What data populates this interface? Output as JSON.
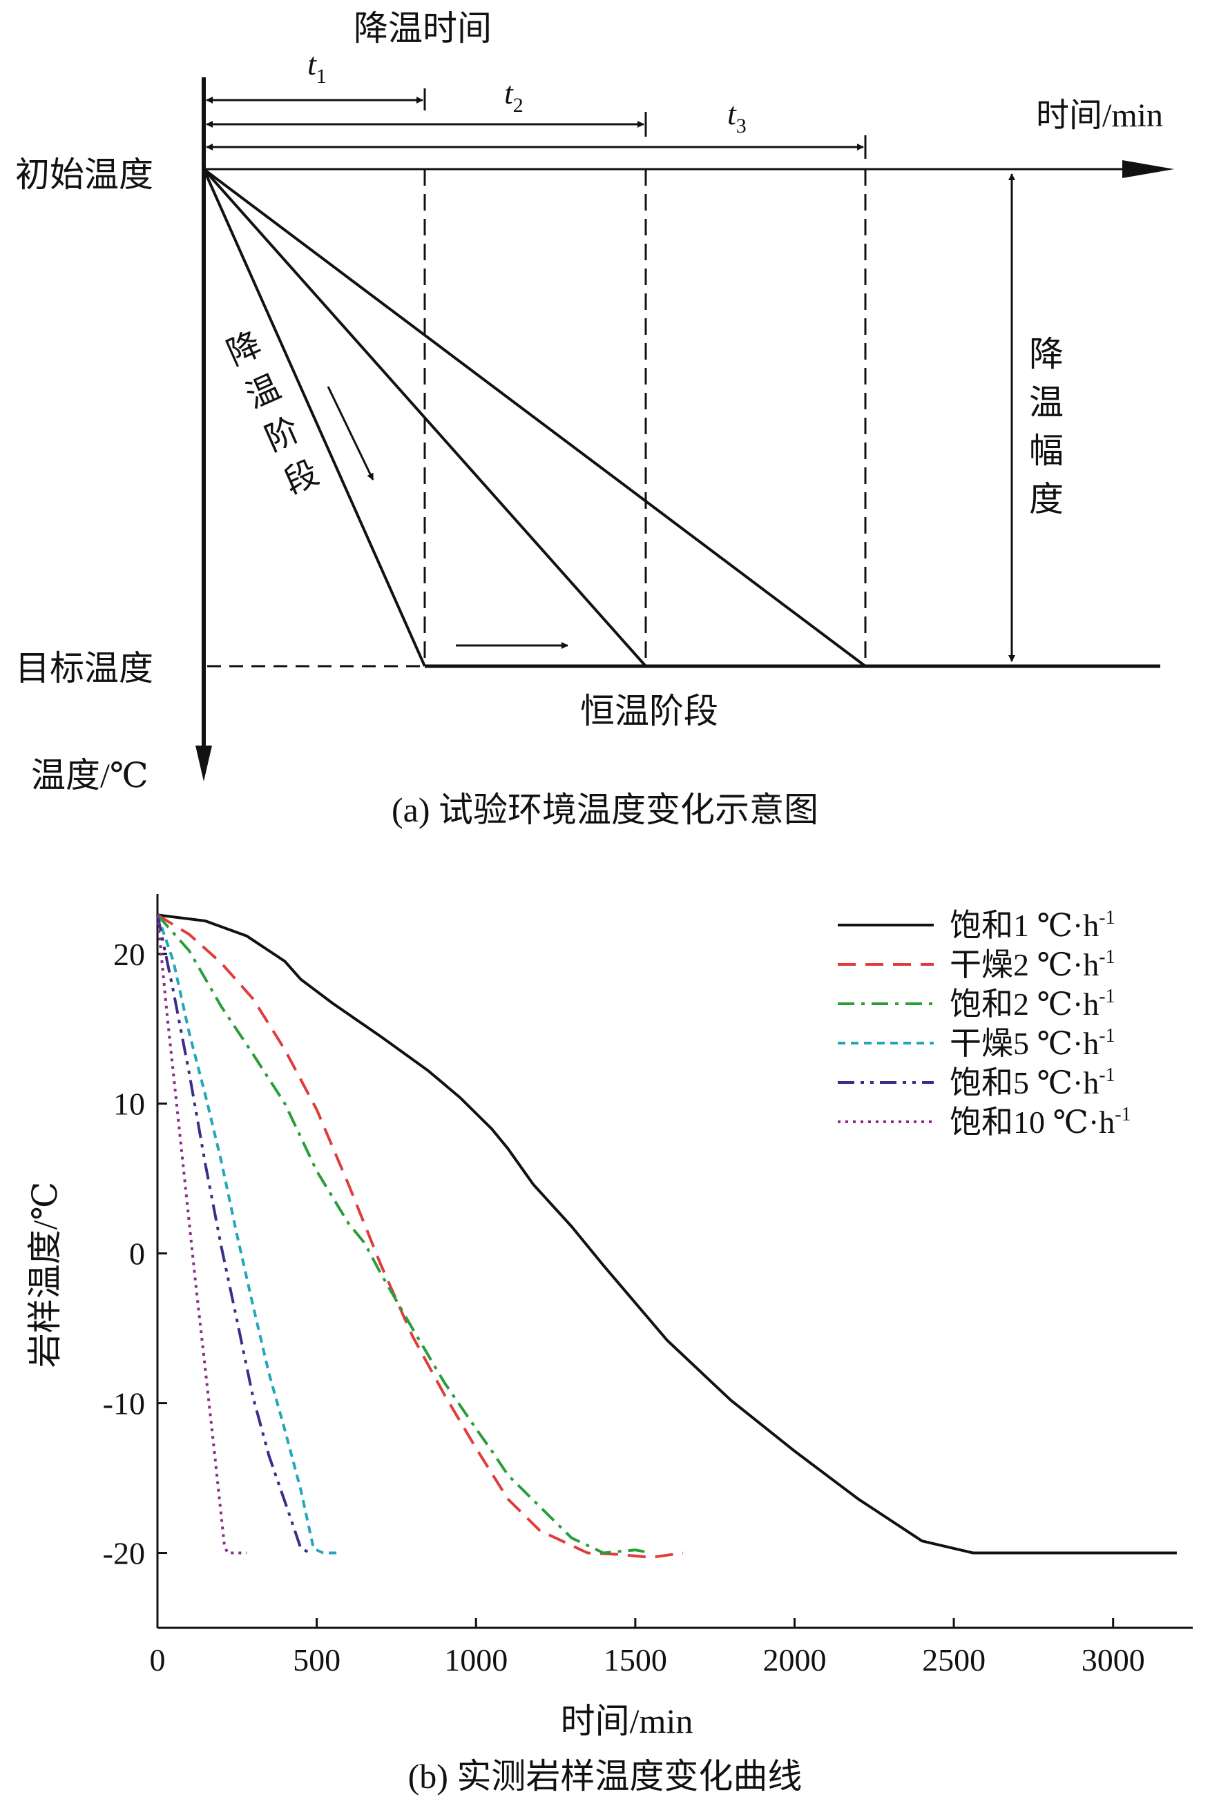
{
  "panel_a": {
    "cooling_time_label": "降温时间",
    "t1": "t",
    "t1_sub": "1",
    "t2": "t",
    "t2_sub": "2",
    "t3": "t",
    "t3_sub": "3",
    "time_axis_label": "时间/min",
    "initial_temp_label": "初始温度",
    "target_temp_label": "目标温度",
    "temp_axis_label": "温度/℃",
    "cooling_stage_chars": [
      "降",
      "温",
      "阶",
      "段"
    ],
    "cooling_range_chars": [
      "降",
      "温",
      "幅",
      "度"
    ],
    "constant_stage_label": "恒温阶段",
    "caption": "(a) 试验环境温度变化示意图"
  },
  "panel_b": {
    "caption": "(b) 实测岩样温度变化曲线"
  },
  "chart_data": [
    {
      "type": "line",
      "title": "(b) 实测岩样温度变化曲线",
      "xlabel": "时间/min",
      "ylabel": "岩样温度/℃",
      "xlim": [
        0,
        3250
      ],
      "ylim": [
        -25,
        24
      ],
      "xticks": [
        0,
        500,
        1000,
        1500,
        2000,
        2500,
        3000
      ],
      "yticks": [
        20,
        10,
        0,
        -10,
        -20
      ],
      "grid": false,
      "legend_position": "top-right",
      "series": [
        {
          "name": "饱和1 ℃·h",
          "name_sup": "-1",
          "color": "#111111",
          "style": "solid",
          "points": [
            [
              0,
              22.6
            ],
            [
              150,
              22.2
            ],
            [
              280,
              21.2
            ],
            [
              400,
              19.5
            ],
            [
              450,
              18.3
            ],
            [
              550,
              16.7
            ],
            [
              700,
              14.5
            ],
            [
              850,
              12.2
            ],
            [
              950,
              10.4
            ],
            [
              1050,
              8.3
            ],
            [
              1100,
              7.0
            ],
            [
              1180,
              4.6
            ],
            [
              1300,
              1.8
            ],
            [
              1400,
              -0.8
            ],
            [
              1500,
              -3.3
            ],
            [
              1600,
              -5.8
            ],
            [
              1800,
              -9.8
            ],
            [
              2000,
              -13.2
            ],
            [
              2200,
              -16.4
            ],
            [
              2400,
              -19.2
            ],
            [
              2560,
              -20
            ],
            [
              3200,
              -20
            ]
          ]
        },
        {
          "name": "干燥2 ℃·h",
          "name_sup": "-1",
          "color": "#e03c3c",
          "style": "dashed",
          "points": [
            [
              0,
              22.6
            ],
            [
              100,
              21.3
            ],
            [
              200,
              19.4
            ],
            [
              300,
              17.0
            ],
            [
              400,
              13.6
            ],
            [
              500,
              9.6
            ],
            [
              600,
              4.6
            ],
            [
              700,
              -0.7
            ],
            [
              800,
              -5.5
            ],
            [
              900,
              -9.4
            ],
            [
              1000,
              -13.0
            ],
            [
              1100,
              -16.4
            ],
            [
              1200,
              -18.5
            ],
            [
              1350,
              -20
            ],
            [
              1450,
              -20.1
            ],
            [
              1550,
              -20.3
            ],
            [
              1650,
              -20
            ]
          ]
        },
        {
          "name": "饱和2 ℃·h",
          "name_sup": "-1",
          "color": "#2a9d3a",
          "style": "dashdot",
          "points": [
            [
              0,
              22.6
            ],
            [
              100,
              20.2
            ],
            [
              200,
              16.5
            ],
            [
              300,
              13.3
            ],
            [
              400,
              10.0
            ],
            [
              500,
              5.5
            ],
            [
              600,
              2.0
            ],
            [
              650,
              0.7
            ],
            [
              700,
              -1.3
            ],
            [
              800,
              -5.0
            ],
            [
              900,
              -8.6
            ],
            [
              1000,
              -11.7
            ],
            [
              1050,
              -13.2
            ],
            [
              1100,
              -14.8
            ],
            [
              1200,
              -16.9
            ],
            [
              1300,
              -19.0
            ],
            [
              1400,
              -20
            ],
            [
              1500,
              -19.8
            ],
            [
              1550,
              -20
            ]
          ]
        },
        {
          "name": "干燥5 ℃·h",
          "name_sup": "-1",
          "color": "#22a7b8",
          "style": "dashed-short",
          "points": [
            [
              0,
              22.6
            ],
            [
              50,
              19.5
            ],
            [
              100,
              14.7
            ],
            [
              150,
              10.6
            ],
            [
              200,
              6.2
            ],
            [
              250,
              1.2
            ],
            [
              300,
              -3.5
            ],
            [
              350,
              -8.0
            ],
            [
              400,
              -11.8
            ],
            [
              450,
              -15.8
            ],
            [
              490,
              -19.7
            ],
            [
              520,
              -20
            ],
            [
              570,
              -20
            ]
          ]
        },
        {
          "name": "饱和5 ℃·h",
          "name_sup": "-1",
          "color": "#3a2e86",
          "style": "dashdotdot",
          "points": [
            [
              0,
              22.6
            ],
            [
              50,
              17.5
            ],
            [
              100,
              12.0
            ],
            [
              150,
              6.0
            ],
            [
              200,
              0.5
            ],
            [
              250,
              -4.5
            ],
            [
              300,
              -9.6
            ],
            [
              350,
              -13.5
            ],
            [
              420,
              -17.8
            ],
            [
              450,
              -19.7
            ],
            [
              480,
              -20
            ]
          ]
        },
        {
          "name": "饱和10 ℃·h",
          "name_sup": "-1",
          "color": "#8b2a8e",
          "style": "dotted",
          "points": [
            [
              0,
              22.6
            ],
            [
              30,
              16.0
            ],
            [
              60,
              10.0
            ],
            [
              90,
              4.0
            ],
            [
              120,
              -2.0
            ],
            [
              150,
              -7.7
            ],
            [
              180,
              -13.5
            ],
            [
              210,
              -19.5
            ],
            [
              220,
              -20
            ],
            [
              250,
              -20
            ],
            [
              280,
              -20
            ]
          ]
        }
      ]
    }
  ]
}
